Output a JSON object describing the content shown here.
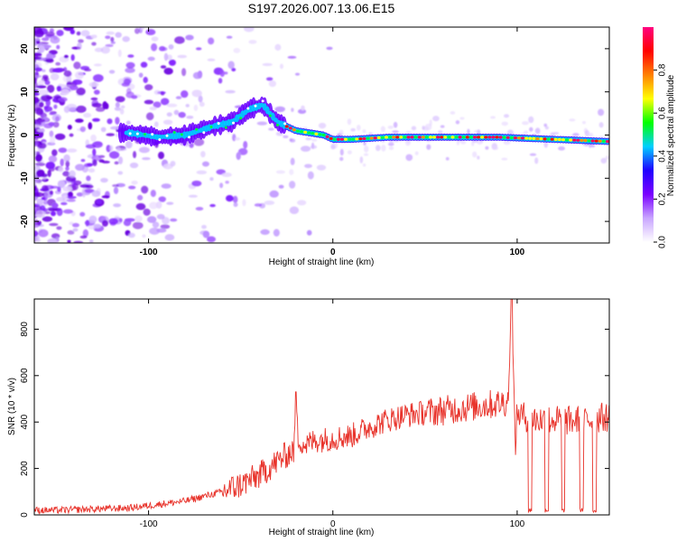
{
  "title": "S197.2026.007.13.06.E15",
  "chart_data": [
    {
      "type": "heatmap",
      "name": "spectrogram",
      "xlabel": "Height of straight line (km)",
      "ylabel": "Frequency (Hz)",
      "xlim": [
        -162,
        150
      ],
      "ylim": [
        -25,
        25
      ],
      "xticks": [
        -100,
        0,
        100
      ],
      "yticks": [
        -20,
        -10,
        0,
        10,
        20
      ],
      "ridge_path": [
        [
          -110,
          0.5
        ],
        [
          -95,
          -0.5
        ],
        [
          -80,
          0
        ],
        [
          -65,
          2
        ],
        [
          -55,
          3
        ],
        [
          -45,
          6
        ],
        [
          -38,
          7
        ],
        [
          -30,
          3
        ],
        [
          -20,
          1
        ],
        [
          -5,
          0
        ],
        [
          0,
          -1
        ],
        [
          10,
          -1
        ],
        [
          30,
          -0.5
        ],
        [
          60,
          -0.5
        ],
        [
          90,
          -0.5
        ],
        [
          120,
          -1
        ],
        [
          150,
          -1.5
        ]
      ],
      "colorbar": {
        "label": "Normalized spectral amplitude",
        "range": [
          0,
          1
        ],
        "ticks": [
          "0.0",
          "0.2",
          "0.4",
          "0.6",
          "0.8"
        ],
        "colors": [
          "#ffffff",
          "#c9a6ff",
          "#7a00ff",
          "#2000ff",
          "#00d0ff",
          "#00ff00",
          "#ffff00",
          "#ff8000",
          "#ff0000",
          "#ff0080"
        ]
      }
    },
    {
      "type": "line",
      "name": "snr",
      "xlabel": "Height of straight line (km)",
      "ylabel": "SNR (10 * v/v)",
      "xlim": [
        -162,
        150
      ],
      "ylim": [
        0,
        930
      ],
      "xticks": [
        -100,
        0,
        100
      ],
      "yticks": [
        0,
        200,
        400,
        600,
        800
      ],
      "color": "#e8332b",
      "x": [
        -162,
        -150,
        -130,
        -110,
        -100,
        -90,
        -80,
        -70,
        -60,
        -50,
        -40,
        -35,
        -30,
        -25,
        -21,
        -20,
        -19,
        -15,
        -10,
        0,
        10,
        20,
        30,
        40,
        50,
        60,
        70,
        80,
        90,
        95,
        97,
        99,
        100,
        102,
        105,
        108,
        110,
        115,
        120,
        125,
        130,
        135,
        140,
        145,
        150
      ],
      "y": [
        20,
        20,
        25,
        30,
        40,
        50,
        60,
        80,
        100,
        130,
        170,
        200,
        230,
        260,
        280,
        530,
        330,
        300,
        320,
        330,
        340,
        380,
        410,
        430,
        440,
        450,
        460,
        470,
        480,
        490,
        880,
        300,
        440,
        430,
        420,
        415,
        410,
        410,
        410,
        405,
        405,
        410,
        410,
        420,
        420
      ]
    }
  ]
}
